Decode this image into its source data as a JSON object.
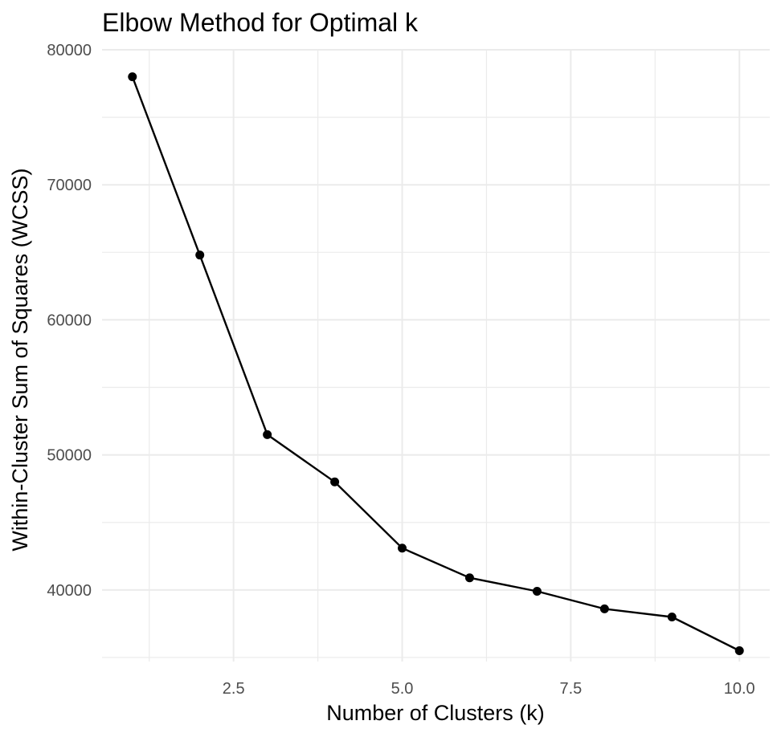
{
  "chart_data": {
    "type": "line",
    "title": "Elbow Method for Optimal k",
    "xlabel": "Number of Clusters (k)",
    "ylabel": "Within-Cluster Sum of Squares (WCSS)",
    "x": [
      1,
      2,
      3,
      4,
      5,
      6,
      7,
      8,
      9,
      10
    ],
    "series": [
      {
        "values": [
          78000,
          64800,
          51500,
          48000,
          43100,
          40900,
          39900,
          38600,
          38000,
          35500
        ]
      }
    ],
    "xlim": [
      0.55,
      10.45
    ],
    "ylim": [
      34700,
      80000
    ],
    "xticks": [
      2.5,
      5,
      7.5,
      10
    ],
    "xtick_labels": [
      "2.5",
      "5.0",
      "7.5",
      "10.0"
    ],
    "yticks": [
      40000,
      50000,
      60000,
      70000,
      80000
    ],
    "ytick_labels": [
      "40000",
      "50000",
      "60000",
      "70000",
      "80000"
    ],
    "grid": true,
    "legend": "none",
    "colors": {
      "line": "#000000",
      "grid": "#ebebeb",
      "tick_text": "#4d4d4d",
      "background": "#ffffff"
    }
  }
}
